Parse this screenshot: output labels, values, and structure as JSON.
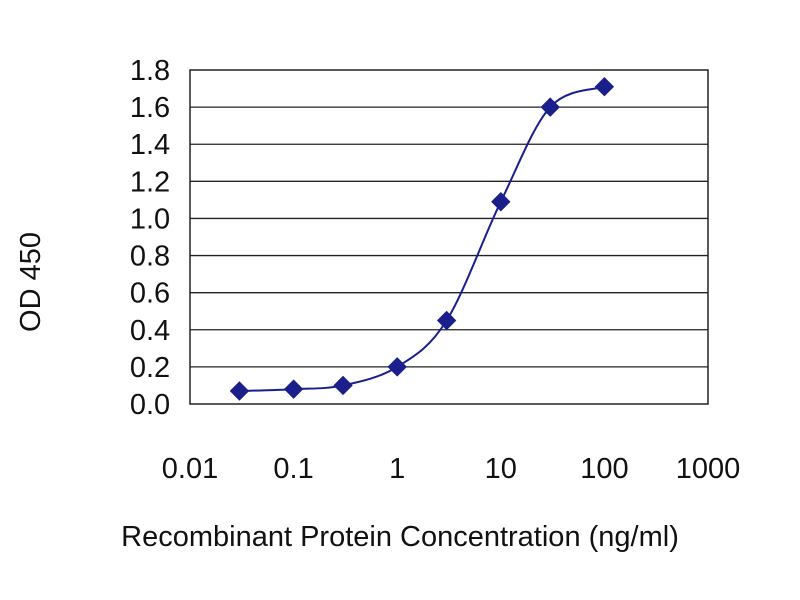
{
  "chart_data": {
    "type": "line",
    "title": "",
    "xlabel": "Recombinant Protein Concentration (ng/ml)",
    "ylabel": "OD 450",
    "x_scale": "log",
    "xlim": [
      0.01,
      1000
    ],
    "ylim": [
      0.0,
      1.8
    ],
    "x_ticks": [
      0.01,
      0.1,
      1,
      10,
      100,
      1000
    ],
    "x_tick_labels": [
      "0.01",
      "0.1",
      "1",
      "10",
      "100",
      "1000"
    ],
    "y_ticks": [
      0.0,
      0.2,
      0.4,
      0.6,
      0.8,
      1.0,
      1.2,
      1.4,
      1.6,
      1.8
    ],
    "y_tick_labels": [
      "0.0",
      "0.2",
      "0.4",
      "0.6",
      "0.8",
      "1.0",
      "1.2",
      "1.4",
      "1.6",
      "1.8"
    ],
    "grid": "horizontal",
    "legend": "none",
    "series": [
      {
        "x": [
          0.03,
          0.1,
          0.3,
          1,
          3,
          10,
          30,
          100
        ],
        "y": [
          0.07,
          0.08,
          0.1,
          0.2,
          0.45,
          1.09,
          1.6,
          1.71
        ],
        "color": "#1a1f8c",
        "marker": "diamond"
      }
    ]
  }
}
